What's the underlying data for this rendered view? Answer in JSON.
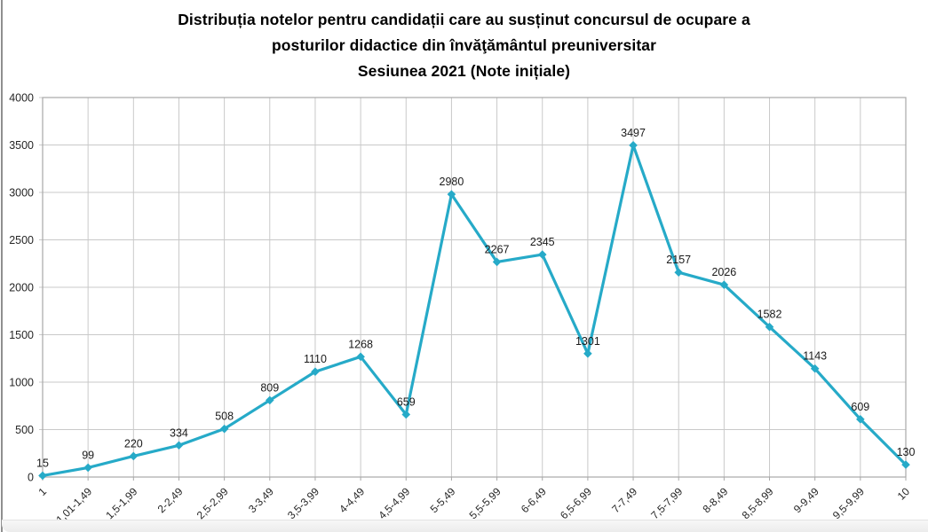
{
  "chart_data": {
    "type": "line",
    "title": "Distribuția notelor pentru candidații care au susținut concursul de ocupare a posturilor didactice din învăţământul preuniversitar Sesiunea 2021 (Note inițiale)",
    "title_lines": [
      "Distribuția notelor pentru candidații care au susținut concursul de ocupare a",
      "posturilor didactice din învăţământul preuniversitar",
      "Sesiunea 2021 (Note inițiale)"
    ],
    "categories": [
      "1",
      "1,01-1,49",
      "1,5-1,99",
      "2-2,49",
      "2,5-2,99",
      "3-3,49",
      "3,5-3,99",
      "4-4,49",
      "4,5-4,99",
      "5-5,49",
      "5,5-5,99",
      "6-6,49",
      "6,5-6,99",
      "7-7,49",
      "7,5-7,99",
      "8-8,49",
      "8,5-8,99",
      "9-9,49",
      "9,5-9,99",
      "10"
    ],
    "values": [
      15,
      99,
      220,
      334,
      508,
      809,
      1110,
      1268,
      659,
      2980,
      2267,
      2345,
      1301,
      3497,
      2157,
      2026,
      1582,
      1143,
      609,
      130
    ],
    "xlabel": "",
    "ylabel": "",
    "ylim": [
      0,
      4000
    ],
    "ytick_step": 500,
    "grid": true,
    "legend": "none",
    "marker": "diamond",
    "data_labels": true,
    "colors": {
      "line": "#26AAC8",
      "gridline": "#C9C9C9",
      "plot_border": "#A8A8A8",
      "axis_text": "#262626",
      "data_label": "#1A1A1A",
      "title": "#000000"
    }
  }
}
